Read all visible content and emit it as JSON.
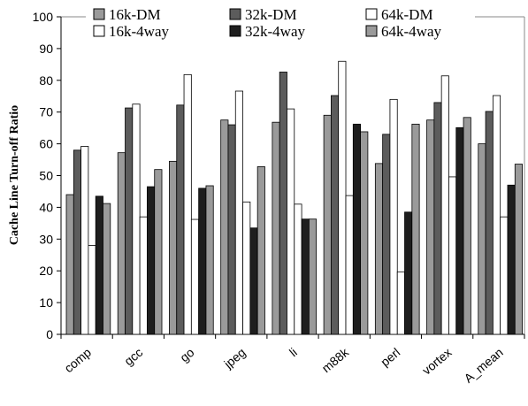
{
  "chart_data": {
    "type": "bar",
    "ylabel": "Cache Line Turn-off Ratio",
    "xlabel": "",
    "ylim": [
      0,
      100
    ],
    "yticks": [
      0,
      10,
      20,
      30,
      40,
      50,
      60,
      70,
      80,
      90,
      100
    ],
    "grid": false,
    "legend_position": "top",
    "categories": [
      "comp",
      "gcc",
      "go",
      "jpeg",
      "li",
      "m88k",
      "perl",
      "vortex",
      "A_mean"
    ],
    "series": [
      {
        "name": "16k-DM",
        "color": "#9a9a9a",
        "values": [
          44,
          57.2,
          54.5,
          67.5,
          66.8,
          69,
          53.8,
          67.5,
          60
        ]
      },
      {
        "name": "32k-DM",
        "color": "#5c5c5c",
        "values": [
          58,
          71.3,
          72.2,
          66,
          82.6,
          75.2,
          63,
          73,
          70.2
        ]
      },
      {
        "name": "64k-DM",
        "color": "#ffffff",
        "values": [
          59.2,
          72.5,
          81.8,
          76.6,
          71,
          86,
          74,
          81.4,
          75.2
        ]
      },
      {
        "name": "16k-4way",
        "color": "#ffffff",
        "values": [
          28,
          37,
          36.2,
          41.7,
          41,
          43.7,
          19.7,
          49.6,
          37
        ]
      },
      {
        "name": "32k-4way",
        "color": "#1e1e1e",
        "values": [
          43.5,
          46.5,
          46,
          33.5,
          36.3,
          66.2,
          38.5,
          65.1,
          47
        ]
      },
      {
        "name": "64k-4way",
        "color": "#9a9a9a",
        "values": [
          41.2,
          51.9,
          46.8,
          52.8,
          36.3,
          63.8,
          66.2,
          68.3,
          53.6
        ]
      }
    ]
  }
}
